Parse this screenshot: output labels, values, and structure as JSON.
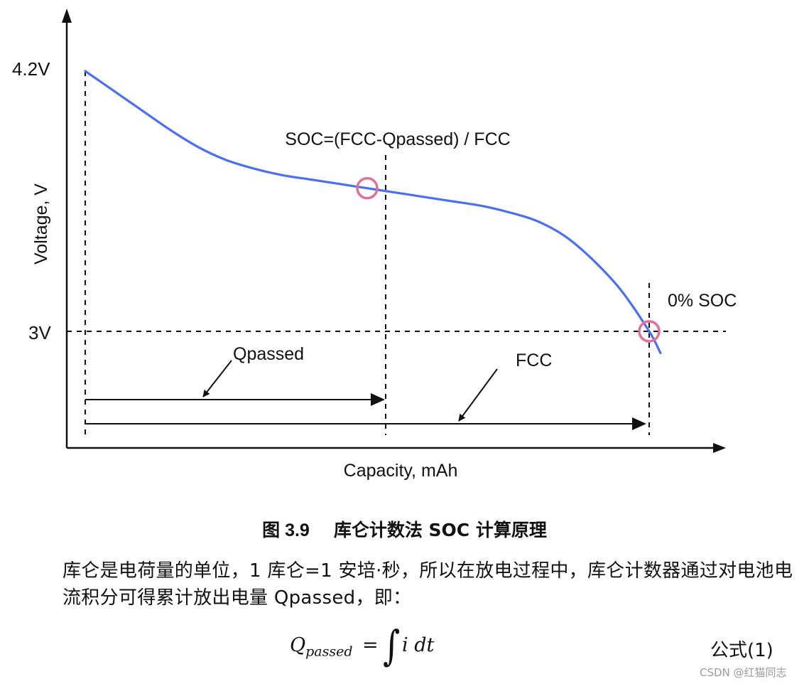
{
  "chart_data": {
    "type": "line",
    "ylabel": "Voltage, V",
    "xlabel": "Capacity, mAh",
    "y_ticks": [
      "4.2V",
      "3V"
    ],
    "top_annotation": "SOC=(FCC-Qpassed) / FCC",
    "end_annotation": "0% SOC",
    "qpassed_label": "Qpassed",
    "fcc_label": "FCC",
    "series": [
      {
        "color": "#4a6ff0",
        "x": [
          0,
          0.05,
          0.1,
          0.15,
          0.2,
          0.25,
          0.3,
          0.35,
          0.4,
          0.45,
          0.5,
          0.55,
          0.6,
          0.65,
          0.7,
          0.75,
          0.8,
          0.85,
          0.9,
          0.95,
          1.0,
          1.02
        ],
        "y": [
          4.2,
          4.11,
          4.02,
          3.93,
          3.85,
          3.79,
          3.75,
          3.72,
          3.7,
          3.68,
          3.66,
          3.64,
          3.62,
          3.6,
          3.58,
          3.55,
          3.51,
          3.44,
          3.33,
          3.19,
          3.0,
          2.9
        ]
      }
    ],
    "marker_color": "#e07097",
    "marker_points": [
      {
        "x": 0.5,
        "y": 3.66
      },
      {
        "x": 1.0,
        "y": 3.0
      }
    ]
  },
  "caption": {
    "number": "图 3.9",
    "title": "库仑计数法 SOC 计算原理"
  },
  "paragraph": "库仑是电荷量的单位，1 库仑=1 安培·秒，所以在放电过程中，库仑计数器通过对电池电流积分可得累计放出电量 Qpassed，即：",
  "formula": {
    "lhs": "Q",
    "lhs_sub": "passed",
    "equals": "=",
    "integral": "∫",
    "rhs": "i dt"
  },
  "equation_number": "公式(1)",
  "watermark": "CSDN @红猫同志"
}
